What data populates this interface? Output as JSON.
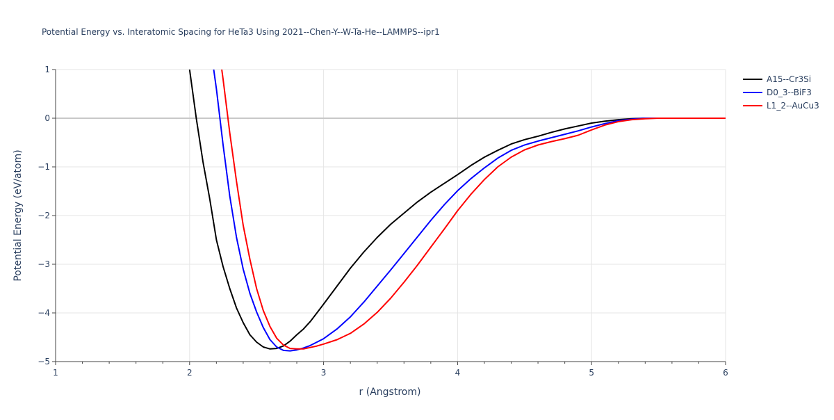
{
  "chart_data": {
    "type": "line",
    "title": "Potential Energy vs. Interatomic Spacing for HeTa3 Using 2021--Chen-Y--W-Ta-He--LAMMPS--ipr1",
    "xlabel": "r (Angstrom)",
    "ylabel": "Potential Energy (eV/atom)",
    "xlim": [
      1,
      6
    ],
    "ylim": [
      -5,
      1
    ],
    "xticks": [
      1,
      2,
      3,
      4,
      5,
      6
    ],
    "xtick_labels": [
      "1",
      "2",
      "3",
      "4",
      "5",
      "6"
    ],
    "yticks": [
      1,
      0,
      -1,
      -2,
      -3,
      -4,
      -5
    ],
    "ytick_labels": [
      "1",
      "0",
      "−1",
      "−2",
      "−3",
      "−4",
      "−5"
    ],
    "grid": true,
    "legend_position": "top-right",
    "series": [
      {
        "name": "A15--Cr3Si",
        "color": "#000000",
        "x": [
          2.0,
          2.05,
          2.1,
          2.15,
          2.2,
          2.25,
          2.3,
          2.35,
          2.4,
          2.45,
          2.5,
          2.55,
          2.6,
          2.65,
          2.7,
          2.75,
          2.8,
          2.85,
          2.9,
          2.95,
          3.0,
          3.1,
          3.2,
          3.3,
          3.4,
          3.5,
          3.6,
          3.7,
          3.8,
          3.9,
          4.0,
          4.1,
          4.2,
          4.3,
          4.4,
          4.5,
          4.6,
          4.7,
          4.8,
          4.9,
          5.0,
          5.1,
          5.2,
          5.3,
          5.4,
          5.5,
          5.6,
          5.8,
          6.0
        ],
        "y": [
          1.0,
          0.0,
          -0.9,
          -1.65,
          -2.5,
          -3.05,
          -3.5,
          -3.9,
          -4.2,
          -4.45,
          -4.6,
          -4.7,
          -4.74,
          -4.73,
          -4.68,
          -4.58,
          -4.45,
          -4.33,
          -4.18,
          -4.0,
          -3.82,
          -3.45,
          -3.08,
          -2.75,
          -2.45,
          -2.18,
          -1.95,
          -1.72,
          -1.52,
          -1.34,
          -1.16,
          -0.97,
          -0.8,
          -0.66,
          -0.53,
          -0.44,
          -0.37,
          -0.29,
          -0.22,
          -0.16,
          -0.1,
          -0.06,
          -0.03,
          -0.01,
          0.0,
          0.0,
          0.0,
          0.0,
          0.0
        ]
      },
      {
        "name": "D0_3--BiF3",
        "color": "#0000ff",
        "x": [
          2.18,
          2.2,
          2.25,
          2.3,
          2.35,
          2.4,
          2.45,
          2.5,
          2.55,
          2.6,
          2.65,
          2.7,
          2.75,
          2.8,
          2.85,
          2.9,
          2.95,
          3.0,
          3.1,
          3.2,
          3.3,
          3.4,
          3.5,
          3.6,
          3.7,
          3.8,
          3.9,
          4.0,
          4.1,
          4.2,
          4.3,
          4.4,
          4.5,
          4.6,
          4.7,
          4.8,
          4.9,
          5.0,
          5.1,
          5.2,
          5.3,
          5.4,
          5.5,
          5.6,
          5.8,
          6.0
        ],
        "y": [
          1.0,
          0.6,
          -0.55,
          -1.6,
          -2.45,
          -3.1,
          -3.6,
          -3.98,
          -4.3,
          -4.55,
          -4.7,
          -4.77,
          -4.78,
          -4.76,
          -4.72,
          -4.67,
          -4.6,
          -4.53,
          -4.33,
          -4.08,
          -3.78,
          -3.45,
          -3.12,
          -2.78,
          -2.44,
          -2.1,
          -1.78,
          -1.49,
          -1.24,
          -1.02,
          -0.82,
          -0.66,
          -0.55,
          -0.47,
          -0.4,
          -0.33,
          -0.26,
          -0.18,
          -0.11,
          -0.05,
          -0.02,
          0.0,
          0.0,
          0.0,
          0.0,
          0.0
        ]
      },
      {
        "name": "L1_2--AuCu3",
        "color": "#ff0000",
        "x": [
          2.24,
          2.25,
          2.3,
          2.35,
          2.4,
          2.45,
          2.5,
          2.55,
          2.6,
          2.65,
          2.7,
          2.75,
          2.8,
          2.85,
          2.9,
          2.95,
          3.0,
          3.1,
          3.2,
          3.3,
          3.4,
          3.5,
          3.6,
          3.7,
          3.8,
          3.9,
          4.0,
          4.1,
          4.2,
          4.3,
          4.4,
          4.5,
          4.6,
          4.7,
          4.8,
          4.9,
          5.0,
          5.1,
          5.2,
          5.3,
          5.4,
          5.5,
          5.6,
          5.8,
          6.0
        ],
        "y": [
          1.0,
          0.8,
          -0.3,
          -1.3,
          -2.2,
          -2.9,
          -3.5,
          -3.95,
          -4.28,
          -4.52,
          -4.66,
          -4.73,
          -4.74,
          -4.74,
          -4.71,
          -4.68,
          -4.64,
          -4.55,
          -4.42,
          -4.23,
          -3.99,
          -3.7,
          -3.37,
          -3.02,
          -2.65,
          -2.28,
          -1.9,
          -1.56,
          -1.26,
          -1.0,
          -0.8,
          -0.65,
          -0.55,
          -0.48,
          -0.42,
          -0.35,
          -0.24,
          -0.14,
          -0.07,
          -0.03,
          -0.01,
          0.0,
          0.0,
          0.0,
          0.0
        ]
      }
    ]
  }
}
